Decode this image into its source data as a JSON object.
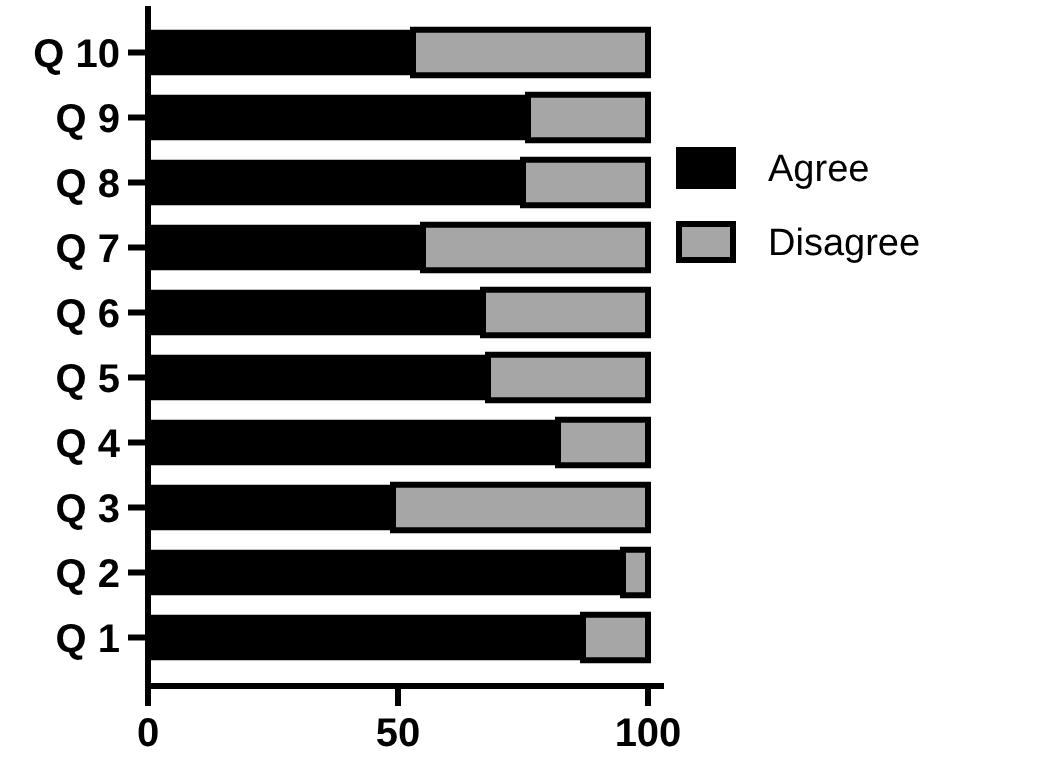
{
  "chart_data": {
    "type": "bar",
    "orientation": "horizontal",
    "stacked": true,
    "categories": [
      "Q 10",
      "Q 9",
      "Q 8",
      "Q 7",
      "Q 6",
      "Q 5",
      "Q 4",
      "Q 3",
      "Q 2",
      "Q 1"
    ],
    "series": [
      {
        "name": "Agree",
        "color": "#000000",
        "values": [
          53,
          76,
          75,
          55,
          67,
          68,
          82,
          49,
          95,
          87
        ]
      },
      {
        "name": "Disagree",
        "color": "#a6a6a6",
        "values": [
          47,
          24,
          25,
          45,
          33,
          32,
          18,
          51,
          5,
          13
        ]
      }
    ],
    "xlim": [
      0,
      100
    ],
    "xticks": [
      0,
      50,
      100
    ],
    "legend": "right"
  }
}
